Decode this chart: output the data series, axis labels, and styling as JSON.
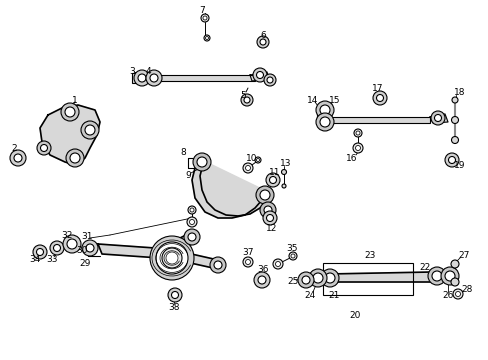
{
  "bg_color": "#ffffff",
  "line_color": "#000000",
  "lw": 0.8,
  "lw2": 1.2,
  "fig_width": 4.89,
  "fig_height": 3.6,
  "dpi": 100
}
